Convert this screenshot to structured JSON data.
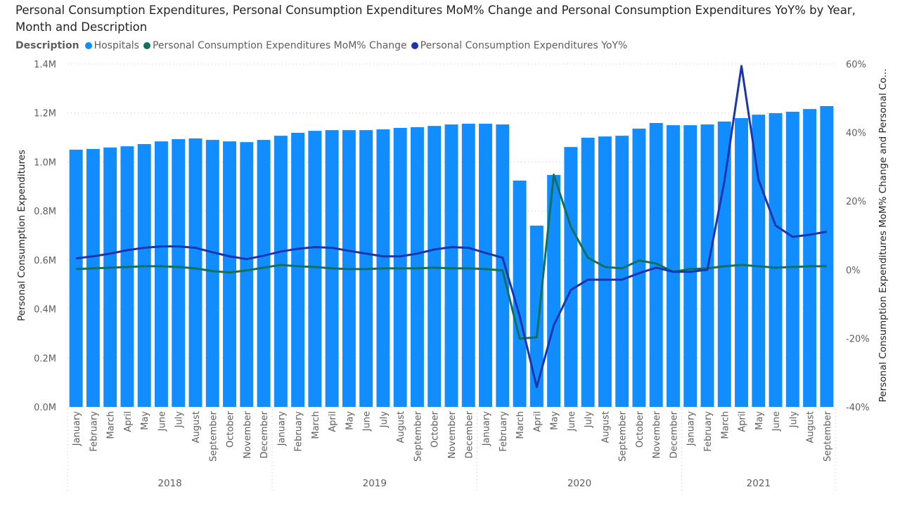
{
  "chart_data": {
    "type": "bar+line",
    "title": "Personal Consumption Expenditures, Personal Consumption Expenditures MoM% Change and Personal Consumption Expenditures YoY% by Year, Month and Description",
    "legend_title": "Description",
    "legend_placement": "top-left",
    "ylabel": "Personal Consumption Expenditures",
    "y2label": "Personal Consumption Expenditures MoM% Change and Personal Co...",
    "ylim": [
      0,
      1400000
    ],
    "y2lim": [
      -40,
      60
    ],
    "yticks": [
      "0.0M",
      "0.2M",
      "0.4M",
      "0.6M",
      "0.8M",
      "1.0M",
      "1.2M",
      "1.4M"
    ],
    "y2ticks": [
      "-40%",
      "-20%",
      "0%",
      "20%",
      "40%",
      "60%"
    ],
    "grid": true,
    "years": [
      "2018",
      "2019",
      "2020",
      "2021"
    ],
    "months_per_year": [
      12,
      12,
      12,
      9
    ],
    "categories": [
      "January",
      "February",
      "March",
      "April",
      "May",
      "June",
      "July",
      "August",
      "September",
      "October",
      "November",
      "December",
      "January",
      "February",
      "March",
      "April",
      "May",
      "June",
      "July",
      "August",
      "September",
      "October",
      "November",
      "December",
      "January",
      "February",
      "March",
      "April",
      "May",
      "June",
      "July",
      "August",
      "September",
      "October",
      "November",
      "December",
      "January",
      "February",
      "March",
      "April",
      "May",
      "June",
      "July",
      "August",
      "September"
    ],
    "series": [
      {
        "name": "Hospitals",
        "type": "bar",
        "axis": "left",
        "color": "#118dff",
        "values": [
          1050000,
          1053000,
          1059000,
          1064000,
          1073000,
          1084000,
          1093000,
          1096000,
          1090000,
          1084000,
          1081000,
          1090000,
          1107000,
          1119000,
          1127000,
          1130000,
          1130000,
          1130000,
          1133000,
          1139000,
          1142000,
          1147000,
          1153000,
          1156000,
          1156000,
          1153000,
          924000,
          740000,
          947000,
          1061000,
          1099000,
          1104000,
          1107000,
          1136000,
          1159000,
          1150000,
          1150000,
          1153000,
          1165000,
          1179000,
          1193000,
          1199000,
          1205000,
          1216000,
          1228000
        ]
      },
      {
        "name": "Personal Consumption Expenditures MoM% Change",
        "type": "line",
        "axis": "right",
        "color": "#12705e",
        "values": [
          0.2,
          0.4,
          0.6,
          0.8,
          1.0,
          1.0,
          0.8,
          0.4,
          -0.4,
          -0.8,
          -0.2,
          0.6,
          1.4,
          1.0,
          0.8,
          0.4,
          0.2,
          0.2,
          0.4,
          0.4,
          0.4,
          0.6,
          0.4,
          0.4,
          0.2,
          -0.2,
          -20.1,
          -19.7,
          27.7,
          12.5,
          3.5,
          0.8,
          0.4,
          2.7,
          1.8,
          -0.6,
          0.2,
          0.4,
          1.0,
          1.4,
          1.0,
          0.6,
          0.8,
          1.0,
          1.0
        ]
      },
      {
        "name": "Personal Consumption Expenditures YoY%",
        "type": "line",
        "axis": "right",
        "color": "#1a35ad",
        "values": [
          3.3,
          3.9,
          4.7,
          5.7,
          6.4,
          6.8,
          6.8,
          6.4,
          5.1,
          3.9,
          3.1,
          4.1,
          5.3,
          6.1,
          6.6,
          6.4,
          5.5,
          4.7,
          3.9,
          3.9,
          4.7,
          5.9,
          6.6,
          6.4,
          4.9,
          3.5,
          -13.5,
          -34.2,
          -16.2,
          -5.9,
          -2.9,
          -2.9,
          -2.9,
          -1.0,
          0.6,
          -0.6,
          -0.6,
          0.0,
          25.8,
          59.4,
          26.2,
          12.9,
          9.6,
          10.2,
          11.1
        ]
      }
    ]
  }
}
